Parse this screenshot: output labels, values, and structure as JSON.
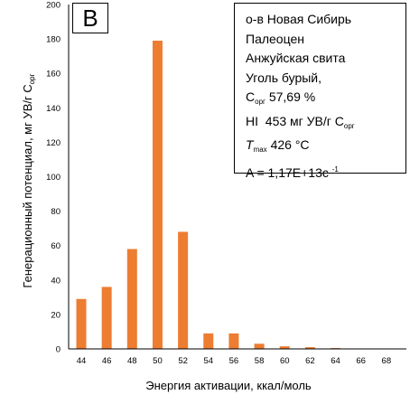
{
  "panel_label": "B",
  "info": {
    "location": "о-в Новая Сибирь",
    "age": "Палеоцен",
    "formation": "Анжуйская свита",
    "material": "Уголь бурый,",
    "corg": {
      "symbol": "C",
      "sub": "орг",
      "value": "57,69 %"
    },
    "hi": {
      "symbol": "HI",
      "value": "453 мг УВ/г C",
      "sub": "орг"
    },
    "tmax": {
      "symbol": "T",
      "sub": "max",
      "value": "426 °C"
    },
    "a": {
      "text": "A = 1,17E+13c",
      "sup": "-1"
    }
  },
  "chart_data": {
    "type": "bar",
    "xlabel": "Энергия активации, ккал/моль",
    "ylabel": "Генерационный потенциал, мг УВ/г C",
    "ylabel_sub": "орг",
    "categories": [
      "44",
      "46",
      "48",
      "50",
      "52",
      "54",
      "56",
      "58",
      "60",
      "62",
      "64",
      "66",
      "68"
    ],
    "values": [
      29,
      36,
      58,
      179,
      68,
      9,
      9,
      3,
      1.5,
      1,
      0.5,
      0,
      0
    ],
    "ylim": [
      0,
      200
    ],
    "yticks": [
      0,
      20,
      40,
      60,
      80,
      100,
      120,
      140,
      160,
      180,
      200
    ],
    "bar_color": "#ed7d31",
    "grid": false
  }
}
